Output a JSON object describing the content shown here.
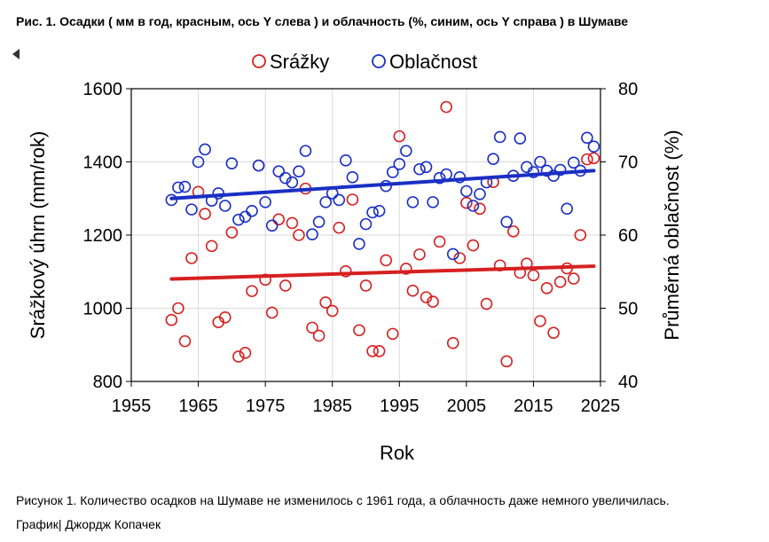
{
  "figure": {
    "title": "Рис. 1. Осадки ( мм в год, красным, ось Y слева ) и облачность (%, синим, ось Y справа ) в Шумаве",
    "caption": "Рисунок 1. Количество осадков на Шумаве не изменилось с 1961 года, а облачность даже немного увеличилась.",
    "credit": "График| Джордж Копачек"
  },
  "chart_data": {
    "type": "scatter",
    "xlabel": "Rok",
    "ylabel": "Srážkový úhrn (mm/rok)",
    "y2label": "Průměrná oblačnost (%)",
    "xlim": [
      1955,
      2025
    ],
    "xticks": [
      1955,
      1965,
      1975,
      1985,
      1995,
      2005,
      2015,
      2025
    ],
    "ylim": [
      800,
      1600
    ],
    "yticks": [
      800,
      1000,
      1200,
      1400,
      1600
    ],
    "y2lim": [
      40,
      80
    ],
    "y2ticks": [
      40,
      50,
      60,
      70,
      80
    ],
    "grid": true,
    "legend_position": "top-center",
    "series": [
      {
        "name": "Srážky",
        "axis": "left",
        "color": "#d62020",
        "x": [
          1961,
          1962,
          1963,
          1964,
          1965,
          1966,
          1967,
          1968,
          1969,
          1970,
          1971,
          1972,
          1973,
          1974,
          1975,
          1976,
          1977,
          1978,
          1979,
          1980,
          1981,
          1982,
          1983,
          1984,
          1985,
          1986,
          1987,
          1988,
          1989,
          1990,
          1991,
          1992,
          1993,
          1994,
          1995,
          1996,
          1997,
          1998,
          1999,
          2000,
          2001,
          2002,
          2003,
          2004,
          2005,
          2006,
          2007,
          2008,
          2009,
          2010,
          2011,
          2012,
          2013,
          2014,
          2015,
          2016,
          2017,
          2018,
          2019,
          2020,
          2021,
          2022,
          2023,
          2024
        ],
        "y": [
          968,
          1000,
          910,
          1137,
          1318,
          1258,
          1170,
          962,
          975,
          1207,
          868,
          878,
          1047,
          1390,
          1078,
          988,
          1243,
          1062,
          1233,
          1200,
          1327,
          947,
          925,
          1016,
          993,
          1220,
          1101,
          1297,
          940,
          1062,
          883,
          883,
          1131,
          930,
          1470,
          1108,
          1048,
          1147,
          1030,
          1018,
          1182,
          1550,
          905,
          1137,
          1288,
          1172,
          1272,
          1012,
          1345,
          1117,
          855,
          1210,
          1097,
          1122,
          1090,
          965,
          1055,
          933,
          1072,
          1109,
          1081,
          1200,
          1407,
          1410
        ],
        "trend": [
          1080,
          1115
        ]
      },
      {
        "name": "Oblačnost",
        "axis": "right",
        "color": "#1a2fc4",
        "x": [
          1961,
          1962,
          1963,
          1964,
          1965,
          1966,
          1967,
          1968,
          1969,
          1970,
          1971,
          1972,
          1973,
          1974,
          1975,
          1976,
          1977,
          1978,
          1979,
          1980,
          1981,
          1982,
          1983,
          1984,
          1985,
          1986,
          1987,
          1988,
          1989,
          1990,
          1991,
          1992,
          1993,
          1994,
          1995,
          1996,
          1997,
          1998,
          1999,
          2000,
          2001,
          2002,
          2003,
          2004,
          2005,
          2006,
          2007,
          2008,
          2009,
          2010,
          2011,
          2012,
          2013,
          2014,
          2015,
          2016,
          2017,
          2018,
          2019,
          2020,
          2021,
          2022,
          2023,
          2024
        ],
        "y": [
          64.8,
          66.5,
          66.6,
          63.5,
          70,
          71.7,
          64.7,
          65.7,
          64,
          69.8,
          62.1,
          62.5,
          63.3,
          69.5,
          64.5,
          61.3,
          68.7,
          67.8,
          67.2,
          68.7,
          71.5,
          60.1,
          61.8,
          64.5,
          65.7,
          64.8,
          70.2,
          67.9,
          58.8,
          61.5,
          63.1,
          63.3,
          66.7,
          68.6,
          69.7,
          71.5,
          64.5,
          69,
          69.3,
          64.5,
          67.8,
          68.3,
          57.4,
          67.9,
          66,
          64,
          65.6,
          67.2,
          70.4,
          73.4,
          61.8,
          68.1,
          73.2,
          69.3,
          68.6,
          70,
          68.8,
          68.1,
          68.9,
          63.6,
          69.9,
          68.8,
          73.3,
          72.1
        ],
        "trend": [
          65,
          68.8
        ]
      }
    ]
  }
}
